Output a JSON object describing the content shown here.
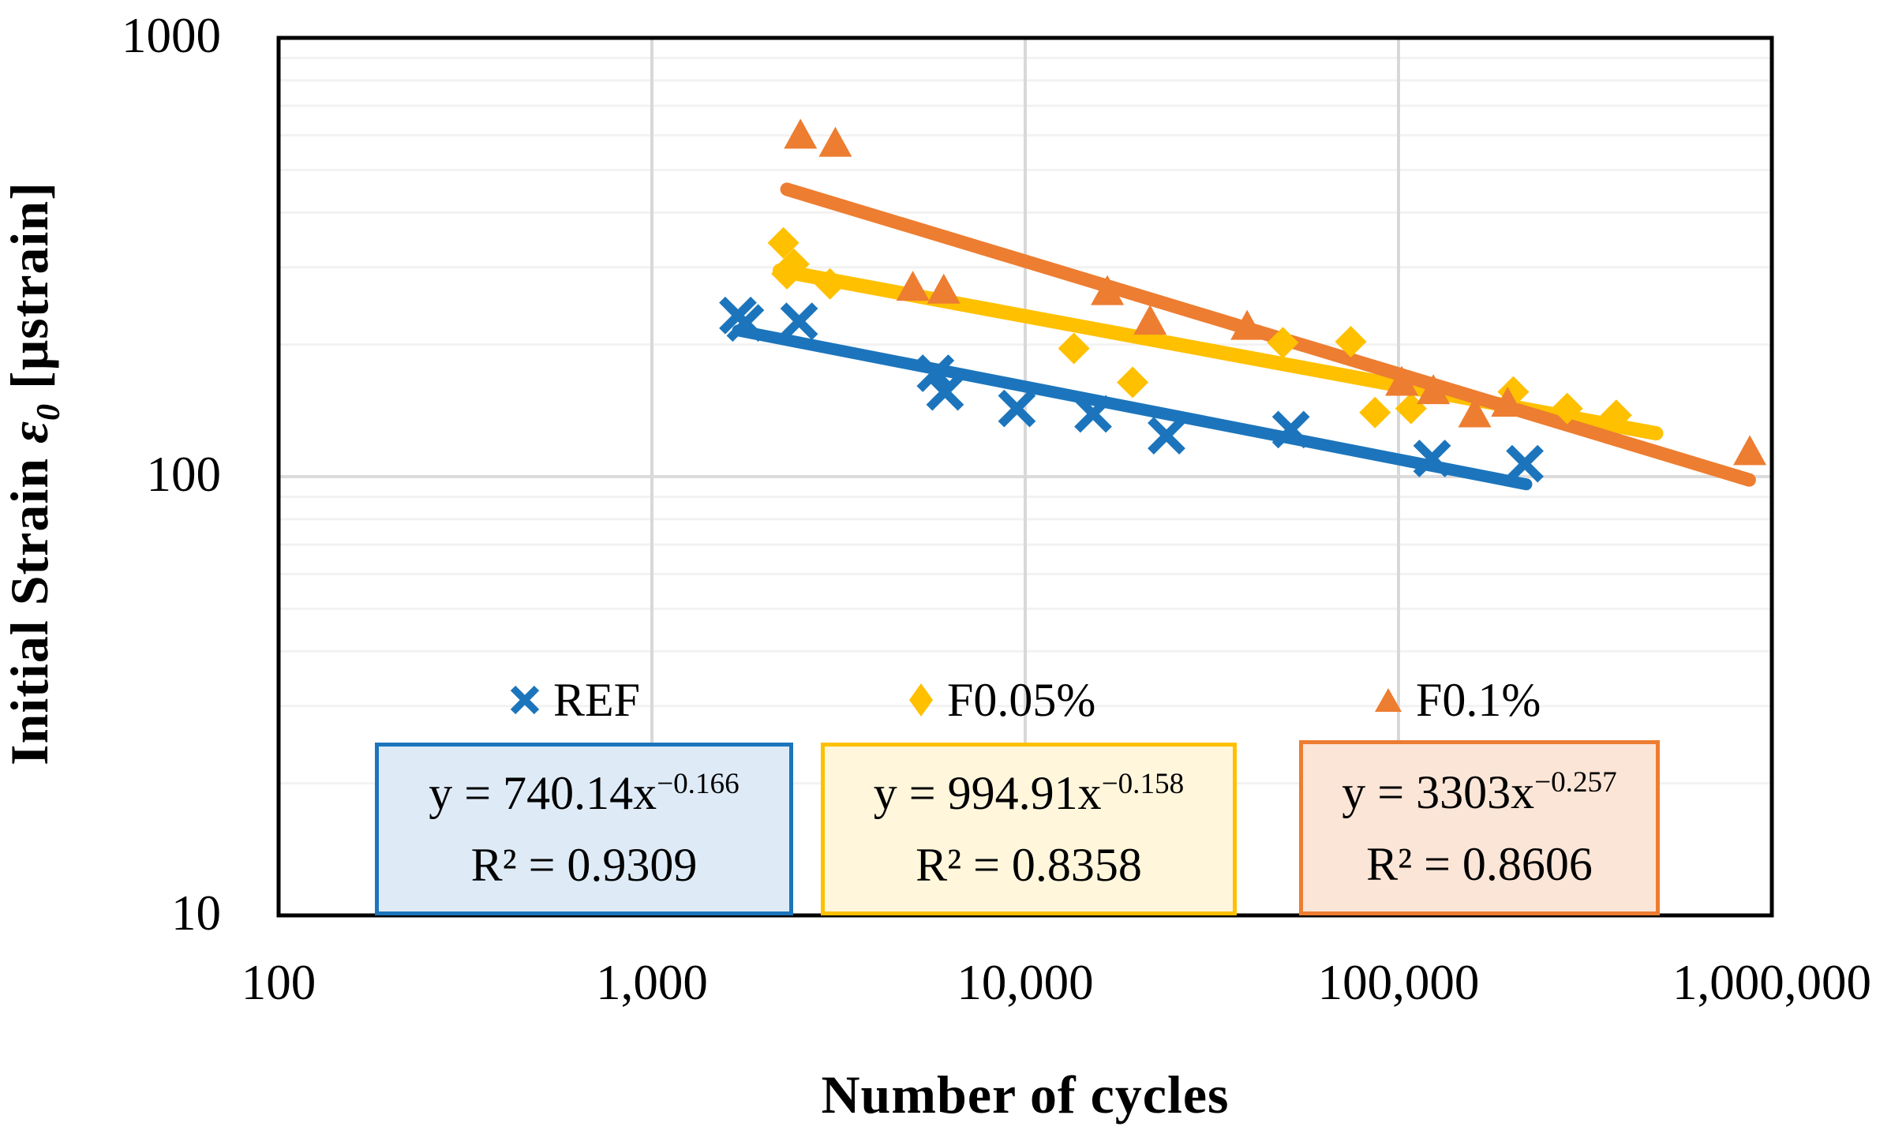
{
  "page": {
    "y_axis_title": {
      "pre": "Initial Strain ",
      "epsilon": "ε",
      "sub": "0",
      "post": " [μstrain]"
    },
    "x_axis_title": "Number of cycles",
    "legend": {
      "items": [
        {
          "label": "REF"
        },
        {
          "label": "F0.05%"
        },
        {
          "label": "F0.1%"
        }
      ]
    },
    "equation_boxes": [
      {
        "series": "REF",
        "eq_base": "y = 740.14x",
        "eq_exp": "−0.166",
        "r2": "R² = 0.9309",
        "fill": "#DEEBF7",
        "border": "#1C75BC"
      },
      {
        "series": "F0.05%",
        "eq_base": "y = 994.91x",
        "eq_exp": "−0.158",
        "r2": "R² = 0.8358",
        "fill": "#FFF6DC",
        "border": "#FFC000"
      },
      {
        "series": "F0.1%",
        "eq_base": "y = 3303x",
        "eq_exp": "−0.257",
        "r2": "R² = 0.8606",
        "fill": "#FBE5D6",
        "border": "#ED7D31"
      }
    ]
  },
  "chart_data": {
    "type": "scatter",
    "title": "",
    "xlabel": "Number of cycles",
    "ylabel": "Initial Strain ε0 [μstrain]",
    "x_axis": {
      "scale": "log",
      "min": 100,
      "max": 1000000,
      "ticks": [
        {
          "value": 100,
          "label": "100"
        },
        {
          "value": 1000,
          "label": "1,000"
        },
        {
          "value": 10000,
          "label": "10,000"
        },
        {
          "value": 100000,
          "label": "100,000"
        },
        {
          "value": 1000000,
          "label": "1,000,000"
        }
      ],
      "gridline_values": [
        1000,
        10000,
        100000
      ]
    },
    "y_axis": {
      "scale": "log",
      "min": 10,
      "max": 1000,
      "ticks": [
        {
          "value": 1000,
          "label": "1000"
        },
        {
          "value": 100,
          "label": "100"
        },
        {
          "value": 10,
          "label": "10"
        }
      ],
      "major_gridline_values": [
        100
      ],
      "minor_gridline_values": [
        20,
        30,
        40,
        50,
        60,
        70,
        80,
        90,
        200,
        300,
        400,
        500,
        600,
        700,
        800,
        900
      ]
    },
    "grid": true,
    "legend_position": "inside-bottom",
    "series": [
      {
        "name": "REF",
        "marker": "x",
        "color": "#1C75BC",
        "points": [
          [
            1700,
            233
          ],
          [
            1780,
            224
          ],
          [
            2480,
            226
          ],
          [
            5750,
            172
          ],
          [
            6100,
            156
          ],
          [
            9500,
            143
          ],
          [
            15200,
            139
          ],
          [
            23900,
            124
          ],
          [
            51500,
            128
          ],
          [
            123000,
            110
          ],
          [
            218000,
            107
          ]
        ],
        "trend": {
          "equation": "y = 740.14x^-0.166",
          "a": 740.14,
          "b": -0.166,
          "r2": 0.9309,
          "x_start": 1700,
          "x_end": 220000
        }
      },
      {
        "name": "F0.05%",
        "marker": "diamond",
        "color": "#FFC000",
        "points": [
          [
            2250,
            341
          ],
          [
            2300,
            290
          ],
          [
            2400,
            305
          ],
          [
            3000,
            275
          ],
          [
            13500,
            196
          ],
          [
            19400,
            164
          ],
          [
            49000,
            202
          ],
          [
            74500,
            203
          ],
          [
            86500,
            140
          ],
          [
            108000,
            143
          ],
          [
            203000,
            156
          ],
          [
            283000,
            143
          ],
          [
            383000,
            138
          ]
        ],
        "trend": {
          "equation": "y = 994.91x^-0.158",
          "a": 994.91,
          "b": -0.158,
          "r2": 0.8358,
          "x_start": 2200,
          "x_end": 490000
        }
      },
      {
        "name": "F0.1%",
        "marker": "triangle",
        "color": "#ED7D31",
        "points": [
          [
            2500,
            600
          ],
          [
            3100,
            575
          ],
          [
            5000,
            270
          ],
          [
            6050,
            266
          ],
          [
            16600,
            264
          ],
          [
            21600,
            226
          ],
          [
            39300,
            220
          ],
          [
            102000,
            164
          ],
          [
            124000,
            157
          ],
          [
            160000,
            139
          ],
          [
            196000,
            147
          ],
          [
            873000,
            114
          ]
        ],
        "trend": {
          "equation": "y = 3303x^-0.257",
          "a": 3303,
          "b": -0.257,
          "r2": 0.8606,
          "x_start": 2300,
          "x_end": 870000
        }
      }
    ]
  }
}
